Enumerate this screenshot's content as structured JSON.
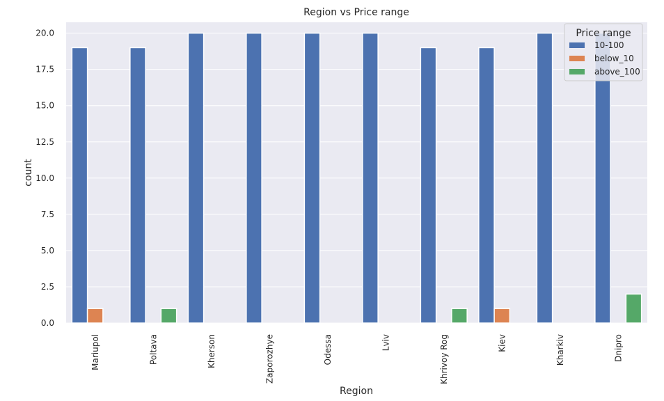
{
  "chart_data": {
    "type": "bar",
    "title": "Region vs Price range",
    "xlabel": "Region",
    "ylabel": "count",
    "categories": [
      "Mariupol",
      "Poltava",
      "Kherson",
      "Zaporozhye",
      "Odessa",
      "Lviv",
      "Khrivoy Rog",
      "Kiev",
      "Kharkiv",
      "Dnipro"
    ],
    "series": [
      {
        "name": "10-100",
        "values": [
          19,
          19,
          20,
          20,
          20,
          20,
          19,
          19,
          20,
          20
        ],
        "color": "#4c72b0"
      },
      {
        "name": "below_10",
        "values": [
          1,
          0,
          0,
          0,
          0,
          0,
          0,
          1,
          0,
          0
        ],
        "color": "#dd8452"
      },
      {
        "name": "above_100",
        "values": [
          0,
          1,
          0,
          0,
          0,
          0,
          1,
          0,
          0,
          2
        ],
        "color": "#55a868"
      }
    ],
    "ylim": [
      0,
      20.75
    ],
    "yticks": [
      0,
      2.5,
      5,
      7.5,
      10,
      12.5,
      15,
      17.5,
      20
    ],
    "ytick_labels": [
      "0.0",
      "2.5",
      "5.0",
      "7.5",
      "10.0",
      "12.5",
      "15.0",
      "17.5",
      "20.0"
    ],
    "grid": true,
    "legend": {
      "title": "Price range",
      "placement": "top-right"
    },
    "background": "#eaeaf2"
  }
}
